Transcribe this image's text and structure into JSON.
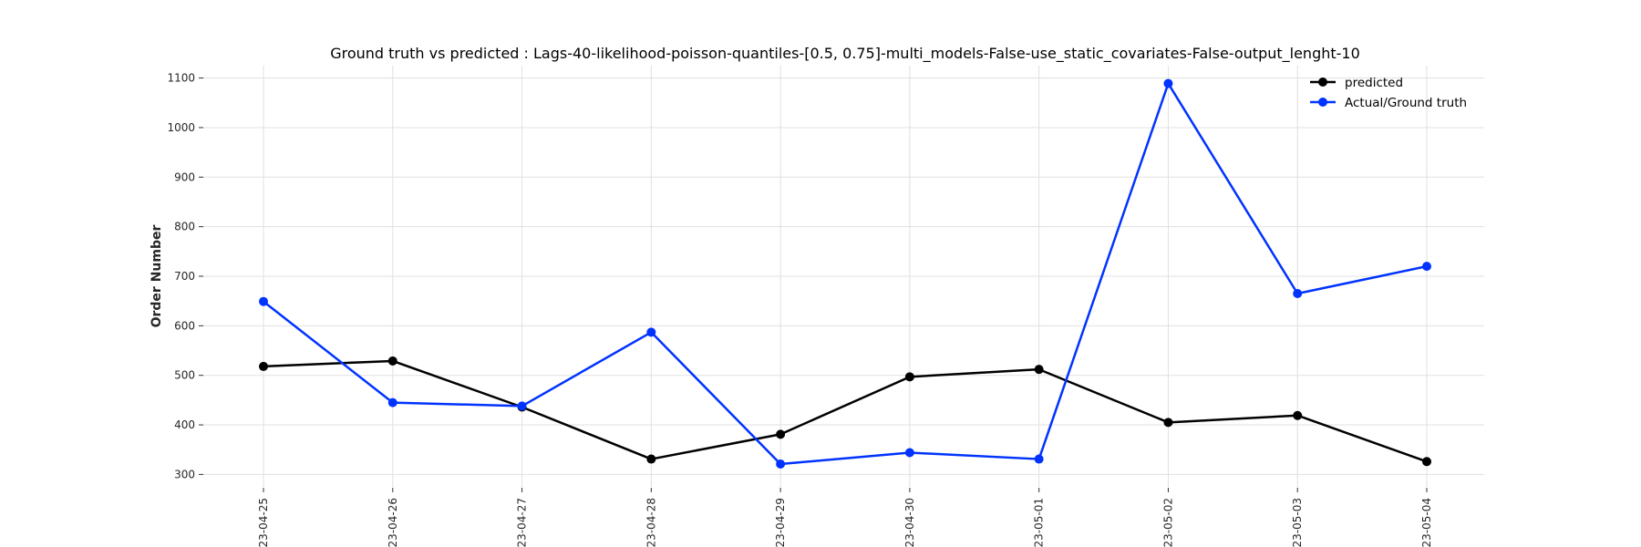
{
  "chart_data": {
    "type": "line",
    "title": "Ground truth vs predicted : Lags-40-likelihood-poisson-quantiles-[0.5, 0.75]-multi_models-False-use_static_covariates-False-output_lenght-10",
    "xlabel": "",
    "ylabel": "Order Number",
    "x": [
      "2023-04-25",
      "2023-04-26",
      "2023-04-27",
      "2023-04-28",
      "2023-04-29",
      "2023-04-30",
      "2023-05-01",
      "2023-05-02",
      "2023-05-03",
      "2023-05-04"
    ],
    "ylim": [
      275,
      1125
    ],
    "yticks": [
      300,
      400,
      500,
      600,
      700,
      800,
      900,
      1000,
      1100
    ],
    "grid": true,
    "legend_position": "top-right",
    "series": [
      {
        "name": "predicted",
        "color": "#000000",
        "values": [
          518,
          529,
          436,
          331,
          381,
          497,
          512,
          405,
          419,
          326
        ]
      },
      {
        "name": "Actual/Ground truth",
        "color": "#0033ff",
        "values": [
          649,
          445,
          438,
          587,
          321,
          344,
          331,
          1089,
          665,
          720
        ]
      }
    ]
  }
}
